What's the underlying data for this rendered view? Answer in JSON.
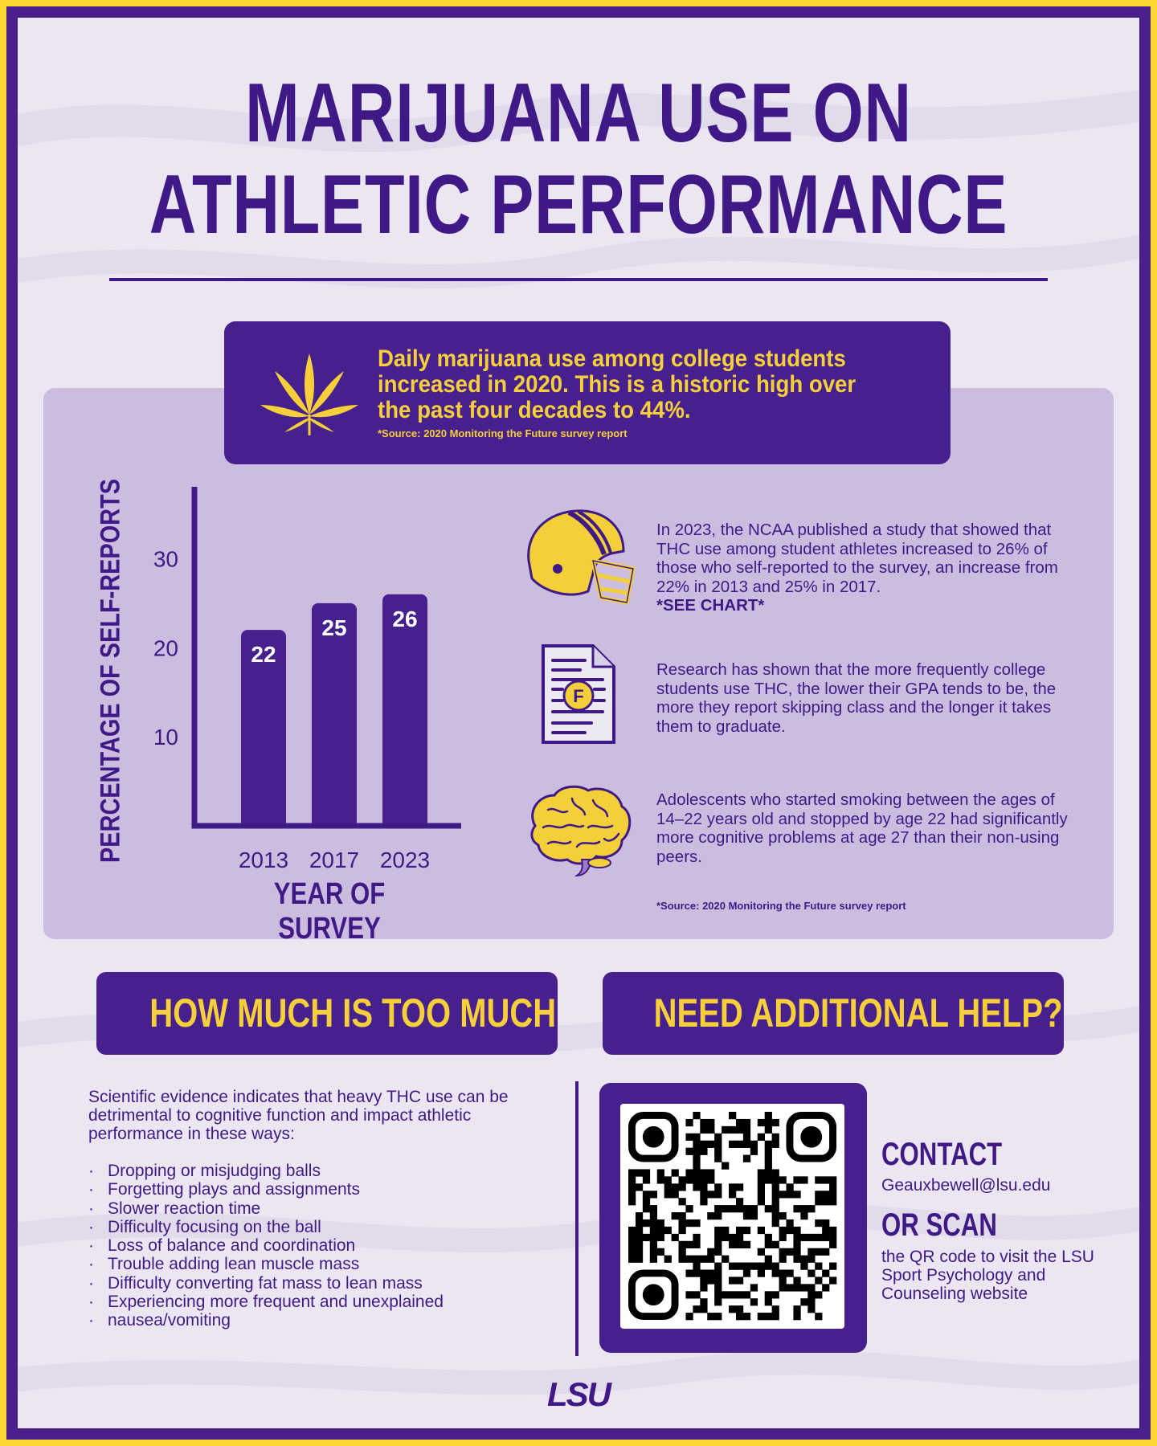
{
  "title": {
    "line1": "MARIJUANA USE ON",
    "line2": "ATHLETIC PERFORMANCE"
  },
  "banner": {
    "text": "Daily marijuana use among college students increased in 2020. This is a historic high over the past four decades to 44%.",
    "source": "*Source: 2020 Monitoring the Future survey report",
    "icon": "cannabis-leaf-icon"
  },
  "chart_data": {
    "type": "bar",
    "categories": [
      "2013",
      "2017",
      "2023"
    ],
    "values": [
      22,
      25,
      26
    ],
    "xlabel": "YEAR OF SURVEY",
    "ylabel": "PERCENTAGE OF SELF-REPORTS",
    "yticks": [
      "10",
      "20",
      "30"
    ],
    "ylim": [
      0,
      35
    ],
    "grid": false,
    "bar_color": "#46208c",
    "label_color": "#ffffff"
  },
  "facts": {
    "helmet": {
      "text": "In 2023, the NCAA published a study that showed that THC use among student athletes increased to 26% of those who self-reported to the survey, an increase from 22% in 2013 and 25% in 2017.",
      "note": "*SEE CHART*",
      "icon": "football-helmet-icon"
    },
    "grade": {
      "text": "Research has shown that the more frequently college students use THC, the lower their GPA tends to be, the more they report skipping class and the longer it takes them to graduate.",
      "icon": "failing-grade-document-icon",
      "grade_letter": "F"
    },
    "brain": {
      "text": "Adolescents who started smoking between the ages of 14–22 years old and stopped by age 22 had significantly more cognitive problems at age 27 than their non-using peers.",
      "icon": "brain-icon"
    },
    "source": "*Source: 2020 Monitoring the Future survey report"
  },
  "how_much": {
    "heading": "HOW MUCH IS TOO MUCH?",
    "intro": "Scientific evidence indicates that heavy THC use can be detrimental to cognitive function and impact athletic performance in these ways:",
    "items": [
      "Dropping or misjudging balls",
      "Forgetting plays and assignments",
      "Slower reaction time",
      "Difficulty focusing on the ball",
      "Loss of balance and coordination",
      "Trouble adding lean muscle mass",
      "Difficulty converting fat mass to lean mass",
      "Experiencing more frequent and unexplained",
      "nausea/vomiting"
    ]
  },
  "help": {
    "heading": "NEED ADDITIONAL HELP?",
    "contact_heading": "CONTACT",
    "email": "Geauxbewell@lsu.edu",
    "scan_heading": "OR SCAN",
    "scan_text": "the QR code to visit the LSU Sport Psychology and Counseling website",
    "qr_icon": "qr-code-icon"
  },
  "footer": {
    "logo": "LSU"
  },
  "colors": {
    "purple": "#46208c",
    "gold": "#f7cf3a",
    "background": "#ebe6f2",
    "panel": "#c8b9de"
  }
}
